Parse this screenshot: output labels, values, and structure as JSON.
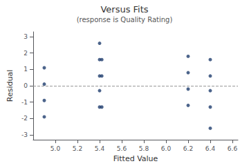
{
  "chart_data": {
    "type": "scatter",
    "title": "Versus Fits",
    "subtitle": "(response is Quality Rating)",
    "xlabel": "Fitted Value",
    "ylabel": "Residual",
    "x": [
      4.9,
      4.9,
      4.9,
      4.9,
      5.4,
      5.4,
      5.42,
      5.4,
      5.42,
      5.4,
      5.4,
      5.42,
      6.2,
      6.2,
      6.2,
      6.2,
      6.4,
      6.4,
      6.4,
      6.4,
      6.4
    ],
    "values": [
      1.1,
      0.1,
      -0.9,
      -1.9,
      2.6,
      1.6,
      1.6,
      0.6,
      0.6,
      -0.3,
      -1.3,
      -1.3,
      1.8,
      0.8,
      -0.2,
      -1.2,
      1.6,
      0.6,
      -0.3,
      -1.3,
      -2.6
    ],
    "color": "#1f3d6e",
    "xlim": [
      4.8,
      6.65
    ],
    "ylim": [
      -3.3,
      3.3
    ],
    "xticks": [
      {
        "value": 5.0,
        "label": "5.0"
      },
      5.2,
      5.4,
      5.6,
      5.8,
      {
        "value": 6.0,
        "label": "6.0"
      },
      6.2,
      6.4,
      6.6
    ],
    "yticks": [
      -3,
      -2,
      -1,
      0,
      1,
      2,
      3
    ],
    "hlines": [
      {
        "value": 0,
        "color": "#999999",
        "line_style": "dashed"
      }
    ],
    "grid": false
  }
}
